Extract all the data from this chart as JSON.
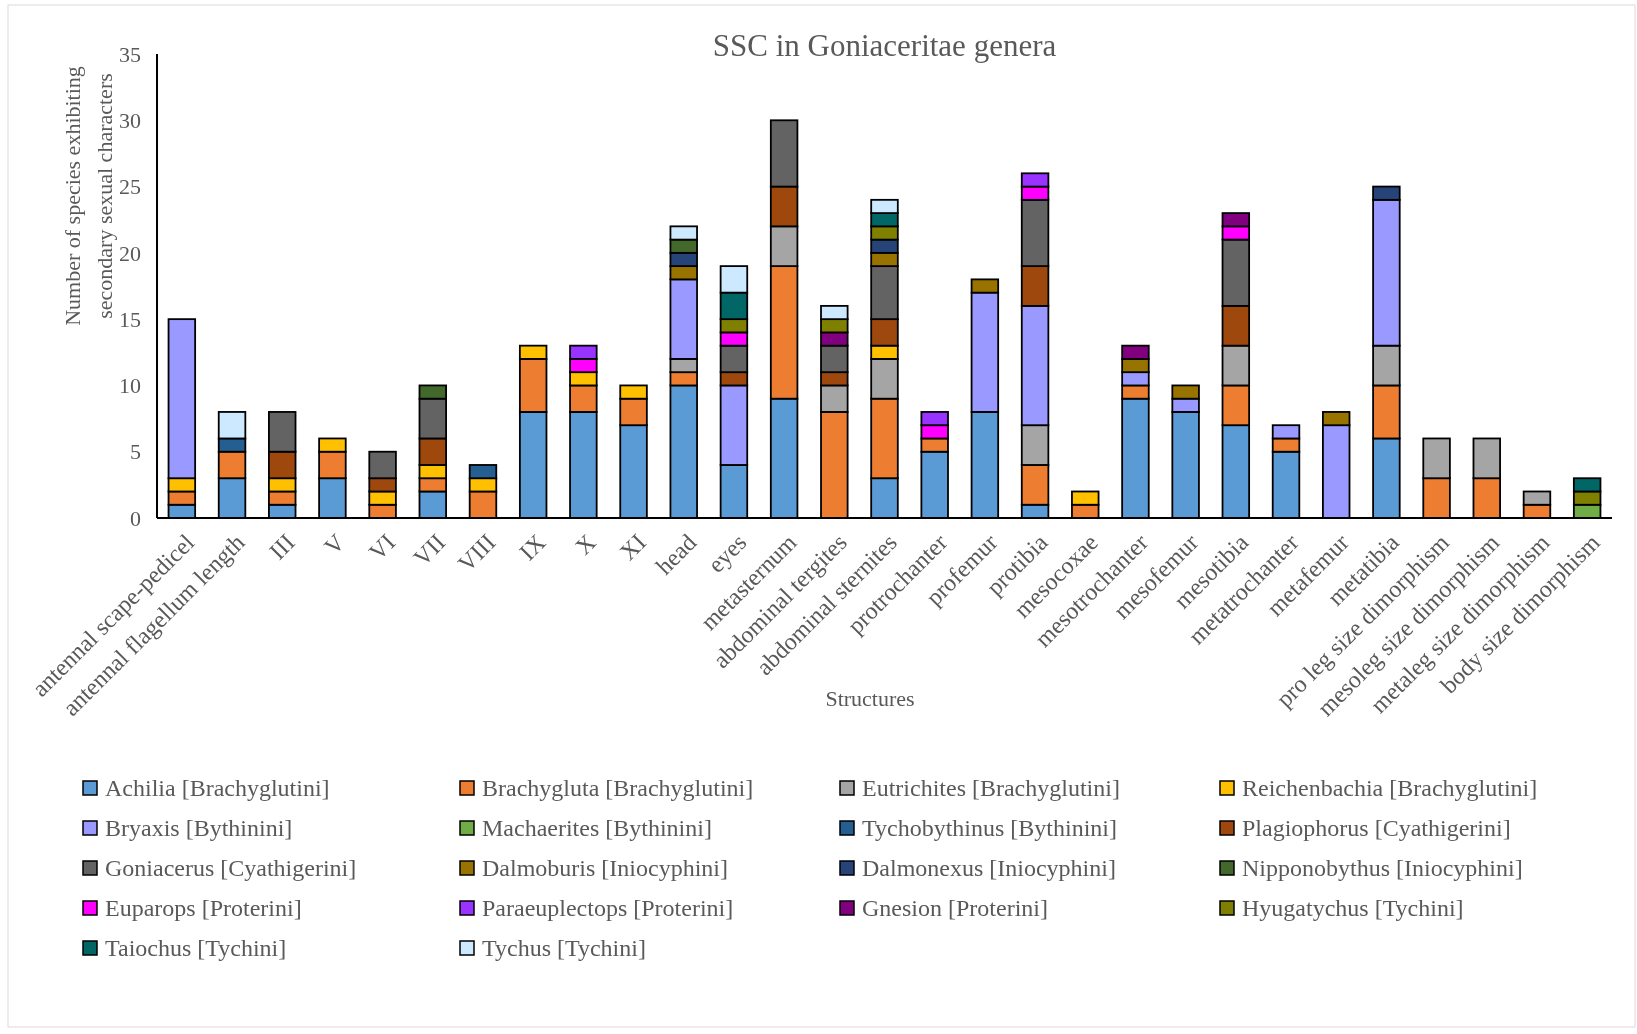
{
  "chart_data": {
    "type": "bar",
    "stacked": true,
    "title": "SSC in Goniaceritae genera",
    "xlabel": "Structures",
    "ylabel": "Number of species exhibiting\nsecondary sexual characters",
    "categories": [
      "antennal scape-pedicel",
      "antennal flagellum length",
      "III",
      "V",
      "VI",
      "VII",
      "VIII",
      "IX",
      "X",
      "XI",
      "head",
      "eyes",
      "metasternum",
      "abdominal tergites",
      "abdominal sternites",
      "protrochanter",
      "profemur",
      "protibia",
      "mesocoxae",
      "mesotrochanter",
      "mesofemur",
      "mesotibia",
      "metatrochanter",
      "metafemur",
      "metatibia",
      "pro leg size dimorphism",
      "mesoleg size dimorphism",
      "metaleg size dimorphism",
      "body size dimorphism"
    ],
    "ylim": [
      0,
      35
    ],
    "yticks": [
      0,
      5,
      10,
      15,
      20,
      25,
      30,
      35
    ],
    "grid": false,
    "legend": "bottom",
    "series": [
      {
        "name": "Achilia [Brachyglutini]",
        "color": "#5b9bd5",
        "values": [
          1,
          3,
          1,
          3,
          0,
          2,
          0,
          8,
          8,
          7,
          10,
          4,
          9,
          0,
          3,
          5,
          8,
          1,
          0,
          9,
          8,
          7,
          5,
          0,
          6,
          0,
          0,
          0,
          0
        ]
      },
      {
        "name": "Brachygluta [Brachyglutini]",
        "color": "#ed7d31",
        "values": [
          1,
          2,
          1,
          2,
          1,
          1,
          2,
          4,
          2,
          2,
          1,
          0,
          10,
          8,
          6,
          1,
          0,
          3,
          1,
          1,
          0,
          3,
          1,
          0,
          4,
          3,
          3,
          1,
          0
        ]
      },
      {
        "name": "Eutrichites [Brachyglutini]",
        "color": "#a5a5a5",
        "values": [
          0,
          0,
          0,
          0,
          0,
          0,
          0,
          0,
          0,
          0,
          1,
          0,
          3,
          2,
          3,
          0,
          0,
          3,
          0,
          0,
          0,
          3,
          0,
          0,
          3,
          3,
          3,
          1,
          0
        ]
      },
      {
        "name": "Reichenbachia [Brachyglutini]",
        "color": "#ffc000",
        "values": [
          1,
          0,
          1,
          1,
          1,
          1,
          1,
          1,
          1,
          1,
          0,
          0,
          0,
          0,
          1,
          0,
          0,
          0,
          1,
          0,
          0,
          0,
          0,
          0,
          0,
          0,
          0,
          0,
          0
        ]
      },
      {
        "name": "Bryaxis [Bythinini]",
        "color": "#9999ff",
        "values": [
          12,
          0,
          0,
          0,
          0,
          0,
          0,
          0,
          0,
          0,
          6,
          6,
          0,
          0,
          0,
          0,
          9,
          9,
          0,
          1,
          1,
          0,
          1,
          7,
          11,
          0,
          0,
          0,
          0
        ]
      },
      {
        "name": "Machaerites [Bythinini]",
        "color": "#70ad47",
        "values": [
          0,
          0,
          0,
          0,
          0,
          0,
          0,
          0,
          0,
          0,
          0,
          0,
          0,
          0,
          0,
          0,
          0,
          0,
          0,
          0,
          0,
          0,
          0,
          0,
          0,
          0,
          0,
          0,
          1
        ]
      },
      {
        "name": "Tychobythinus [Bythinini]",
        "color": "#255e91",
        "values": [
          0,
          1,
          0,
          0,
          0,
          0,
          1,
          0,
          0,
          0,
          0,
          0,
          0,
          0,
          0,
          0,
          0,
          0,
          0,
          0,
          0,
          0,
          0,
          0,
          0,
          0,
          0,
          0,
          0
        ]
      },
      {
        "name": "Plagiophorus [Cyathigerini]",
        "color": "#9e480e",
        "values": [
          0,
          0,
          2,
          0,
          1,
          2,
          0,
          0,
          0,
          0,
          0,
          1,
          3,
          1,
          2,
          0,
          0,
          3,
          0,
          0,
          0,
          3,
          0,
          0,
          0,
          0,
          0,
          0,
          0
        ]
      },
      {
        "name": "Goniacerus [Cyathigerini]",
        "color": "#636363",
        "values": [
          0,
          0,
          3,
          0,
          2,
          3,
          0,
          0,
          0,
          0,
          0,
          2,
          5,
          2,
          4,
          0,
          0,
          5,
          0,
          0,
          0,
          5,
          0,
          0,
          0,
          0,
          0,
          0,
          0
        ]
      },
      {
        "name": "Dalmoburis [Iniocyphini]",
        "color": "#997300",
        "values": [
          0,
          0,
          0,
          0,
          0,
          0,
          0,
          0,
          0,
          0,
          1,
          0,
          0,
          0,
          1,
          0,
          1,
          0,
          0,
          1,
          1,
          0,
          0,
          1,
          0,
          0,
          0,
          0,
          0
        ]
      },
      {
        "name": "Dalmonexus [Iniocyphini]",
        "color": "#264478",
        "values": [
          0,
          0,
          0,
          0,
          0,
          0,
          0,
          0,
          0,
          0,
          1,
          0,
          0,
          0,
          1,
          0,
          0,
          0,
          0,
          0,
          0,
          0,
          0,
          0,
          1,
          0,
          0,
          0,
          0
        ]
      },
      {
        "name": "Nipponobythus [Iniocyphini]",
        "color": "#43682b",
        "values": [
          0,
          0,
          0,
          0,
          0,
          1,
          0,
          0,
          0,
          0,
          1,
          0,
          0,
          0,
          0,
          0,
          0,
          0,
          0,
          0,
          0,
          0,
          0,
          0,
          0,
          0,
          0,
          0,
          0
        ]
      },
      {
        "name": "Euparops [Proterini]",
        "color": "#ff00ff",
        "values": [
          0,
          0,
          0,
          0,
          0,
          0,
          0,
          0,
          1,
          0,
          0,
          1,
          0,
          0,
          0,
          1,
          0,
          1,
          0,
          0,
          0,
          1,
          0,
          0,
          0,
          0,
          0,
          0,
          0
        ]
      },
      {
        "name": "Paraeuplectops [Proterini]",
        "color": "#9933ff",
        "values": [
          0,
          0,
          0,
          0,
          0,
          0,
          0,
          0,
          1,
          0,
          0,
          0,
          0,
          0,
          0,
          1,
          0,
          1,
          0,
          0,
          0,
          0,
          0,
          0,
          0,
          0,
          0,
          0,
          0
        ]
      },
      {
        "name": "Gnesion [Proterini]",
        "color": "#800080",
        "values": [
          0,
          0,
          0,
          0,
          0,
          0,
          0,
          0,
          0,
          0,
          0,
          0,
          0,
          1,
          0,
          0,
          0,
          0,
          0,
          1,
          0,
          1,
          0,
          0,
          0,
          0,
          0,
          0,
          0
        ]
      },
      {
        "name": "Hyugatychus [Tychini]",
        "color": "#808000",
        "values": [
          0,
          0,
          0,
          0,
          0,
          0,
          0,
          0,
          0,
          0,
          0,
          1,
          0,
          1,
          1,
          0,
          0,
          0,
          0,
          0,
          0,
          0,
          0,
          0,
          0,
          0,
          0,
          0,
          1
        ]
      },
      {
        "name": "Taiochus [Tychini]",
        "color": "#006666",
        "values": [
          0,
          0,
          0,
          0,
          0,
          0,
          0,
          0,
          0,
          0,
          0,
          2,
          0,
          0,
          1,
          0,
          0,
          0,
          0,
          0,
          0,
          0,
          0,
          0,
          0,
          0,
          0,
          0,
          1
        ]
      },
      {
        "name": "Tychus [Tychini]",
        "color": "#cce9ff",
        "values": [
          0,
          2,
          0,
          0,
          0,
          0,
          0,
          0,
          0,
          0,
          1,
          2,
          0,
          1,
          1,
          0,
          0,
          0,
          0,
          0,
          0,
          0,
          0,
          0,
          0,
          0,
          0,
          0,
          0
        ]
      }
    ]
  }
}
